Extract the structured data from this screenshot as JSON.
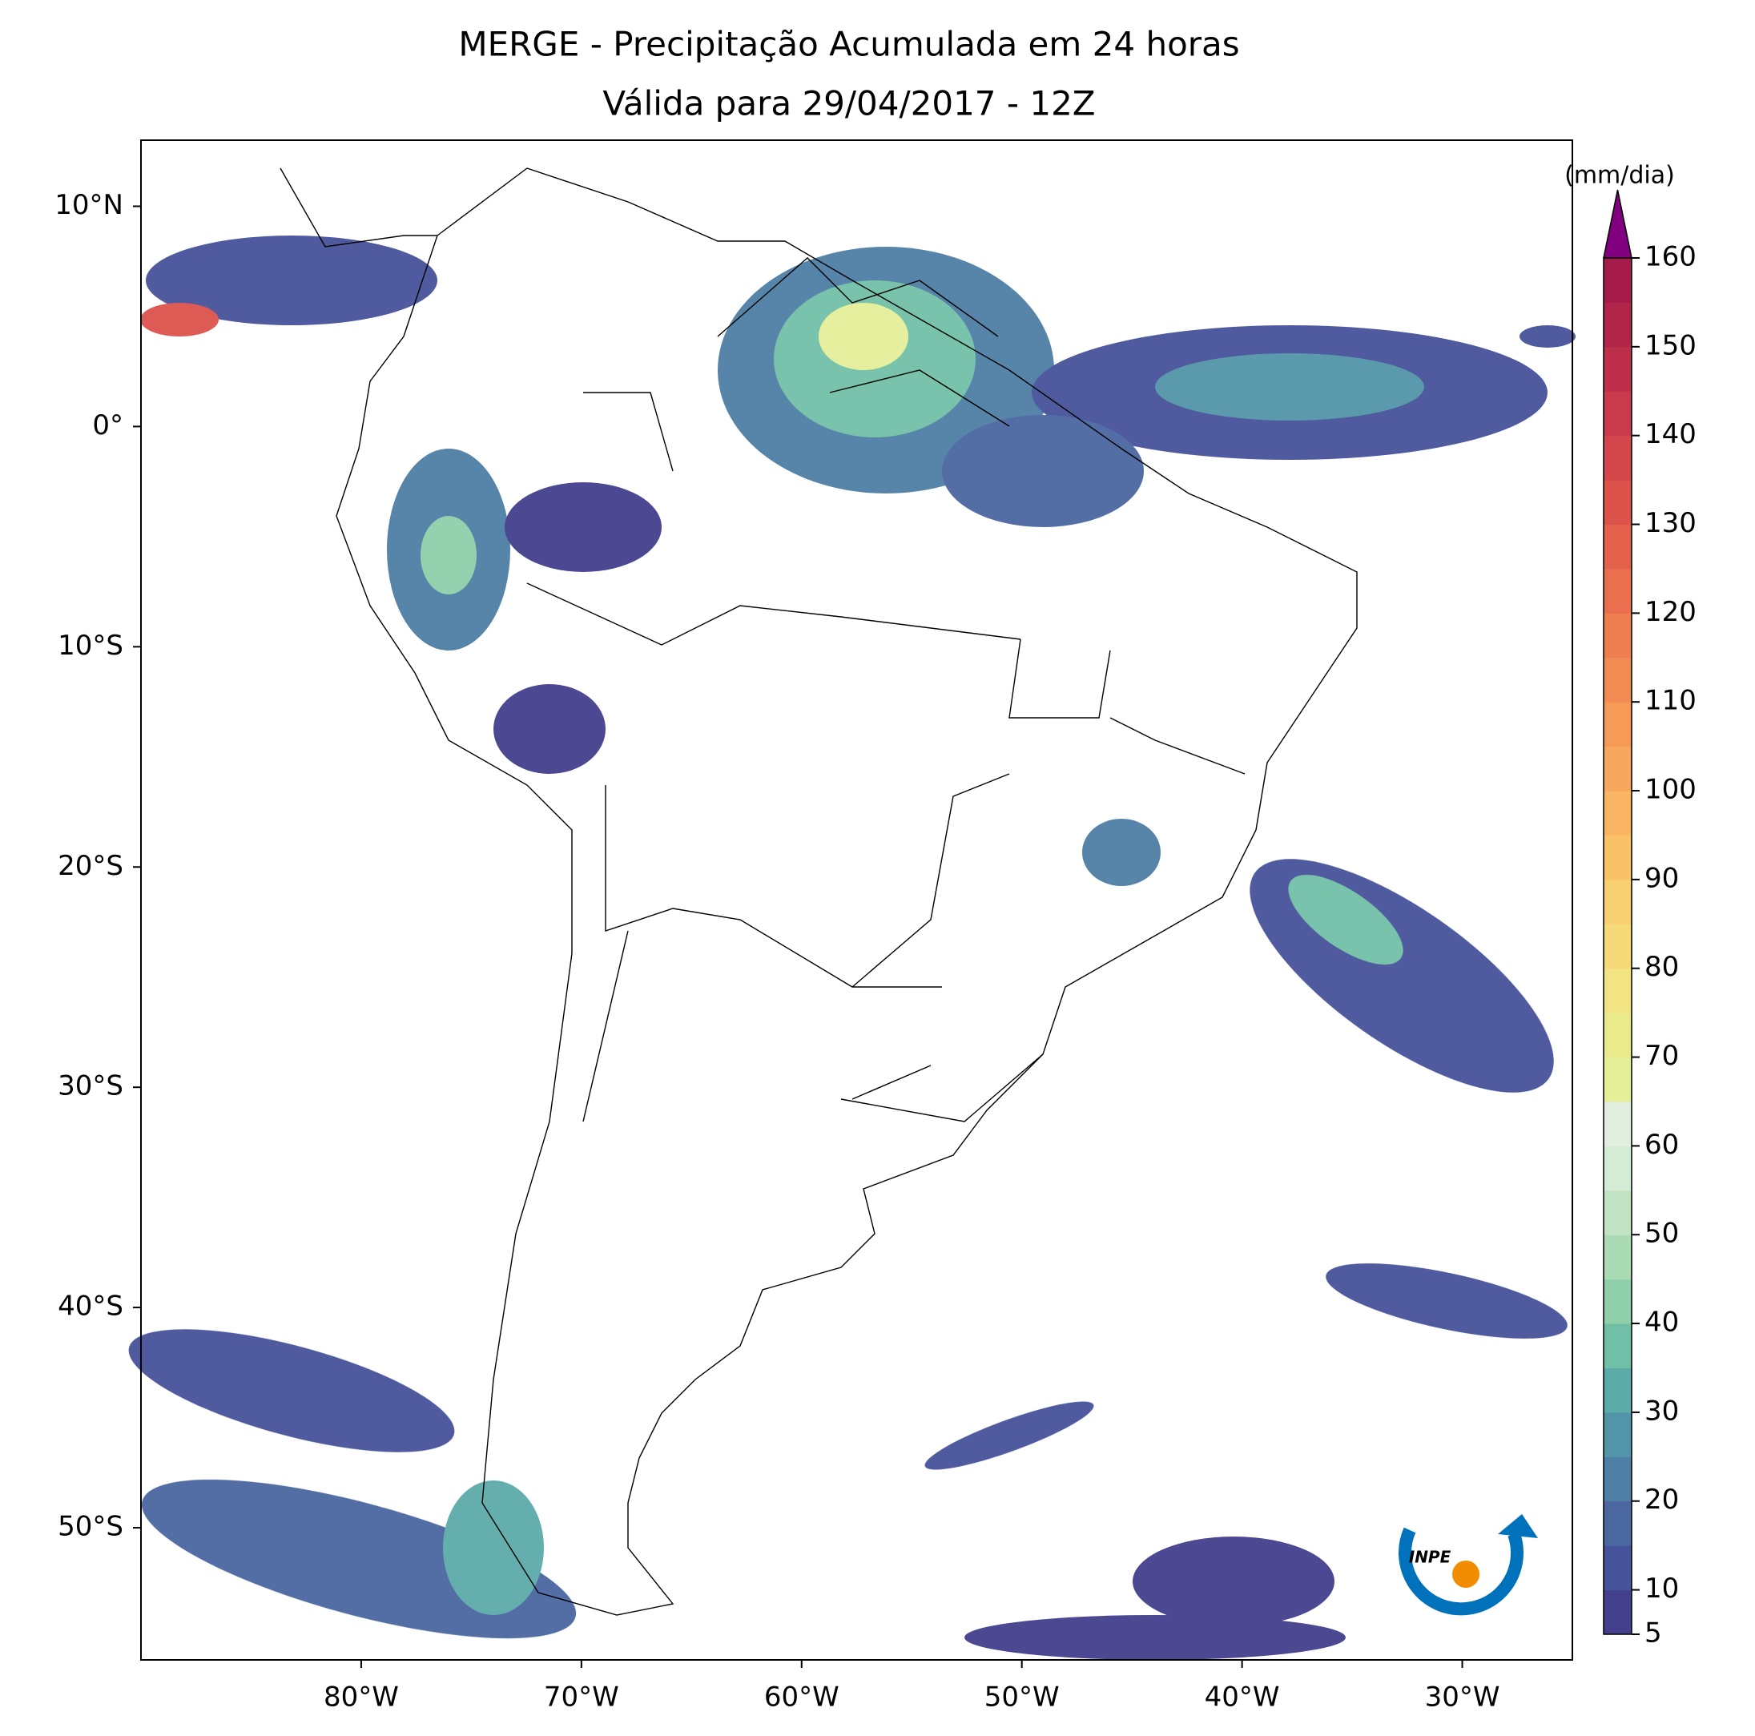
{
  "chart_data": {
    "type": "map",
    "title": "MERGE - Precipitação Acumulada em 24 horas",
    "subtitle": "Válida para 29/04/2017 - 12Z",
    "xlim": [
      -90,
      -25
    ],
    "ylim": [
      -56,
      13
    ],
    "xticks": [
      {
        "value": -80,
        "label": "80°W"
      },
      {
        "value": -70,
        "label": "70°W"
      },
      {
        "value": -60,
        "label": "60°W"
      },
      {
        "value": -50,
        "label": "50°W"
      },
      {
        "value": -40,
        "label": "40°W"
      },
      {
        "value": -30,
        "label": "30°W"
      }
    ],
    "yticks": [
      {
        "value": 10,
        "label": "10°N"
      },
      {
        "value": 0,
        "label": "0°"
      },
      {
        "value": -10,
        "label": "10°S"
      },
      {
        "value": -20,
        "label": "20°S"
      },
      {
        "value": -30,
        "label": "30°S"
      },
      {
        "value": -40,
        "label": "40°S"
      },
      {
        "value": -50,
        "label": "50°S"
      }
    ],
    "colorbar": {
      "label": "(mm/dia)",
      "lim": [
        5,
        160
      ],
      "ticks": [
        5,
        10,
        20,
        30,
        40,
        50,
        60,
        70,
        80,
        90,
        100,
        110,
        120,
        130,
        140,
        150,
        160
      ],
      "colors": [
        "#443f8d",
        "#46529a",
        "#4a67a0",
        "#4f7fa5",
        "#5295a8",
        "#5caba9",
        "#72bfa7",
        "#8fcfaa",
        "#aadbb4",
        "#c2e4c4",
        "#d5ecd6",
        "#e2efe0",
        "#e4ef98",
        "#ebeb8e",
        "#f2e483",
        "#f6da7a",
        "#f8cf71",
        "#f9c269",
        "#f9b563",
        "#f8a85e",
        "#f69a58",
        "#f38c54",
        "#ef7e51",
        "#ea6f4e",
        "#e4614c",
        "#dc534b",
        "#d3464c",
        "#c93a4c",
        "#be2f4c",
        "#b2254b",
        "#a51b4a"
      ],
      "extend_color": "#800080"
    },
    "logo": "INPE"
  }
}
